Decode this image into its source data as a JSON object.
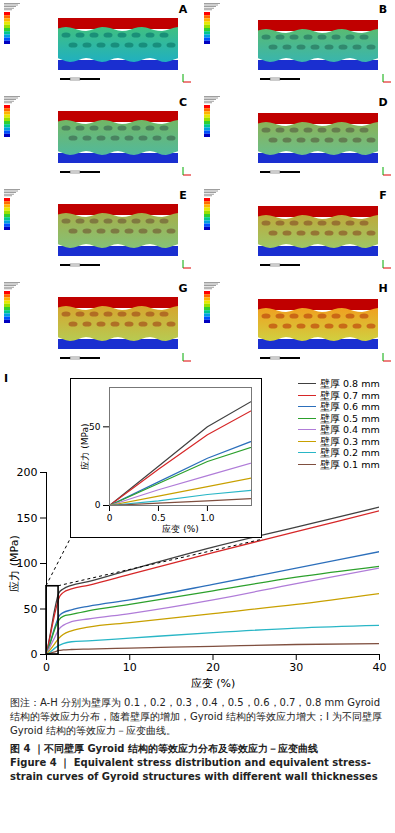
{
  "panels": [
    {
      "label": "A"
    },
    {
      "label": "B"
    },
    {
      "label": "C"
    },
    {
      "label": "D"
    },
    {
      "label": "E"
    },
    {
      "label": "F"
    },
    {
      "label": "G"
    },
    {
      "label": "H"
    }
  ],
  "caption": "图注：A-H 分别为壁厚为 0.1，0.2，0.3，0.4，0.5，0.6，0.7，0.8 mm Gyroid 结构的等效应力分布，随着壁厚的增加，Gyroid 结构的等效应力增大；I 为不同壁厚 Gyroid 结构的等效应力－应变曲线。",
  "figure_title_zh": "图 4 ｜不同壁厚 Gyroid 结构的等效应力分布及等效应力－应变曲线",
  "figure_title_en": "Figure 4 ｜ Equivalent stress distribution and equivalent stress-strain curves of Gyroid structures with different wall thicknesses",
  "chart_data": {
    "type": "line",
    "panel_label": "I",
    "x_label": "应变 (%)",
    "y_label": "应力 (MPa)",
    "xlim": [
      0,
      40
    ],
    "ylim": [
      0,
      200
    ],
    "xticks": [
      0,
      10,
      20,
      30,
      40
    ],
    "yticks": [
      0,
      50,
      100,
      150,
      200
    ],
    "x": [
      0,
      0.5,
      1,
      1.5,
      2,
      3,
      5,
      10,
      20,
      30,
      40
    ],
    "series": [
      {
        "name": "壁厚 0.8 mm",
        "color": "#404040",
        "values": [
          0,
          25,
          50,
          68,
          72,
          76,
          80,
          93,
          118,
          140,
          162
        ]
      },
      {
        "name": "壁厚 0.7 mm",
        "color": "#d62728",
        "values": [
          0,
          23,
          45,
          62,
          68,
          72,
          76,
          88,
          112,
          135,
          158
        ]
      },
      {
        "name": "壁厚 0.6 mm",
        "color": "#2c6fbb",
        "values": [
          0,
          15,
          30,
          42,
          46,
          49,
          53,
          60,
          77,
          95,
          113
        ]
      },
      {
        "name": "壁厚 0.5 mm",
        "color": "#2ca02c",
        "values": [
          0,
          14,
          28,
          38,
          42,
          44,
          48,
          55,
          70,
          85,
          97
        ]
      },
      {
        "name": "壁厚 0.4 mm",
        "color": "#b07cd8",
        "values": [
          0,
          10,
          19,
          28,
          32,
          36,
          39,
          45,
          60,
          78,
          95
        ]
      },
      {
        "name": "壁厚 0.3 mm",
        "color": "#c8a000",
        "values": [
          0,
          6,
          12,
          18,
          22,
          26,
          30,
          35,
          45,
          55,
          67
        ]
      },
      {
        "name": "壁厚 0.2 mm",
        "color": "#29b6c6",
        "values": [
          0,
          3,
          7,
          10,
          12,
          14,
          15,
          18,
          24,
          29,
          32
        ]
      },
      {
        "name": "壁厚 0.1 mm",
        "color": "#7f4f3f",
        "values": [
          0,
          1.5,
          3,
          4.5,
          5,
          5.5,
          6,
          7,
          9,
          11,
          12
        ]
      }
    ],
    "inset": {
      "x_label": "应变 (%)",
      "y_label": "应力 (MPa)",
      "xlim": [
        0,
        1.45
      ],
      "ylim": [
        0,
        75
      ],
      "xticks": [
        0,
        0.5,
        {
          "value": 1,
          "label": "1.0"
        }
      ],
      "yticks": [
        0,
        50
      ]
    }
  }
}
